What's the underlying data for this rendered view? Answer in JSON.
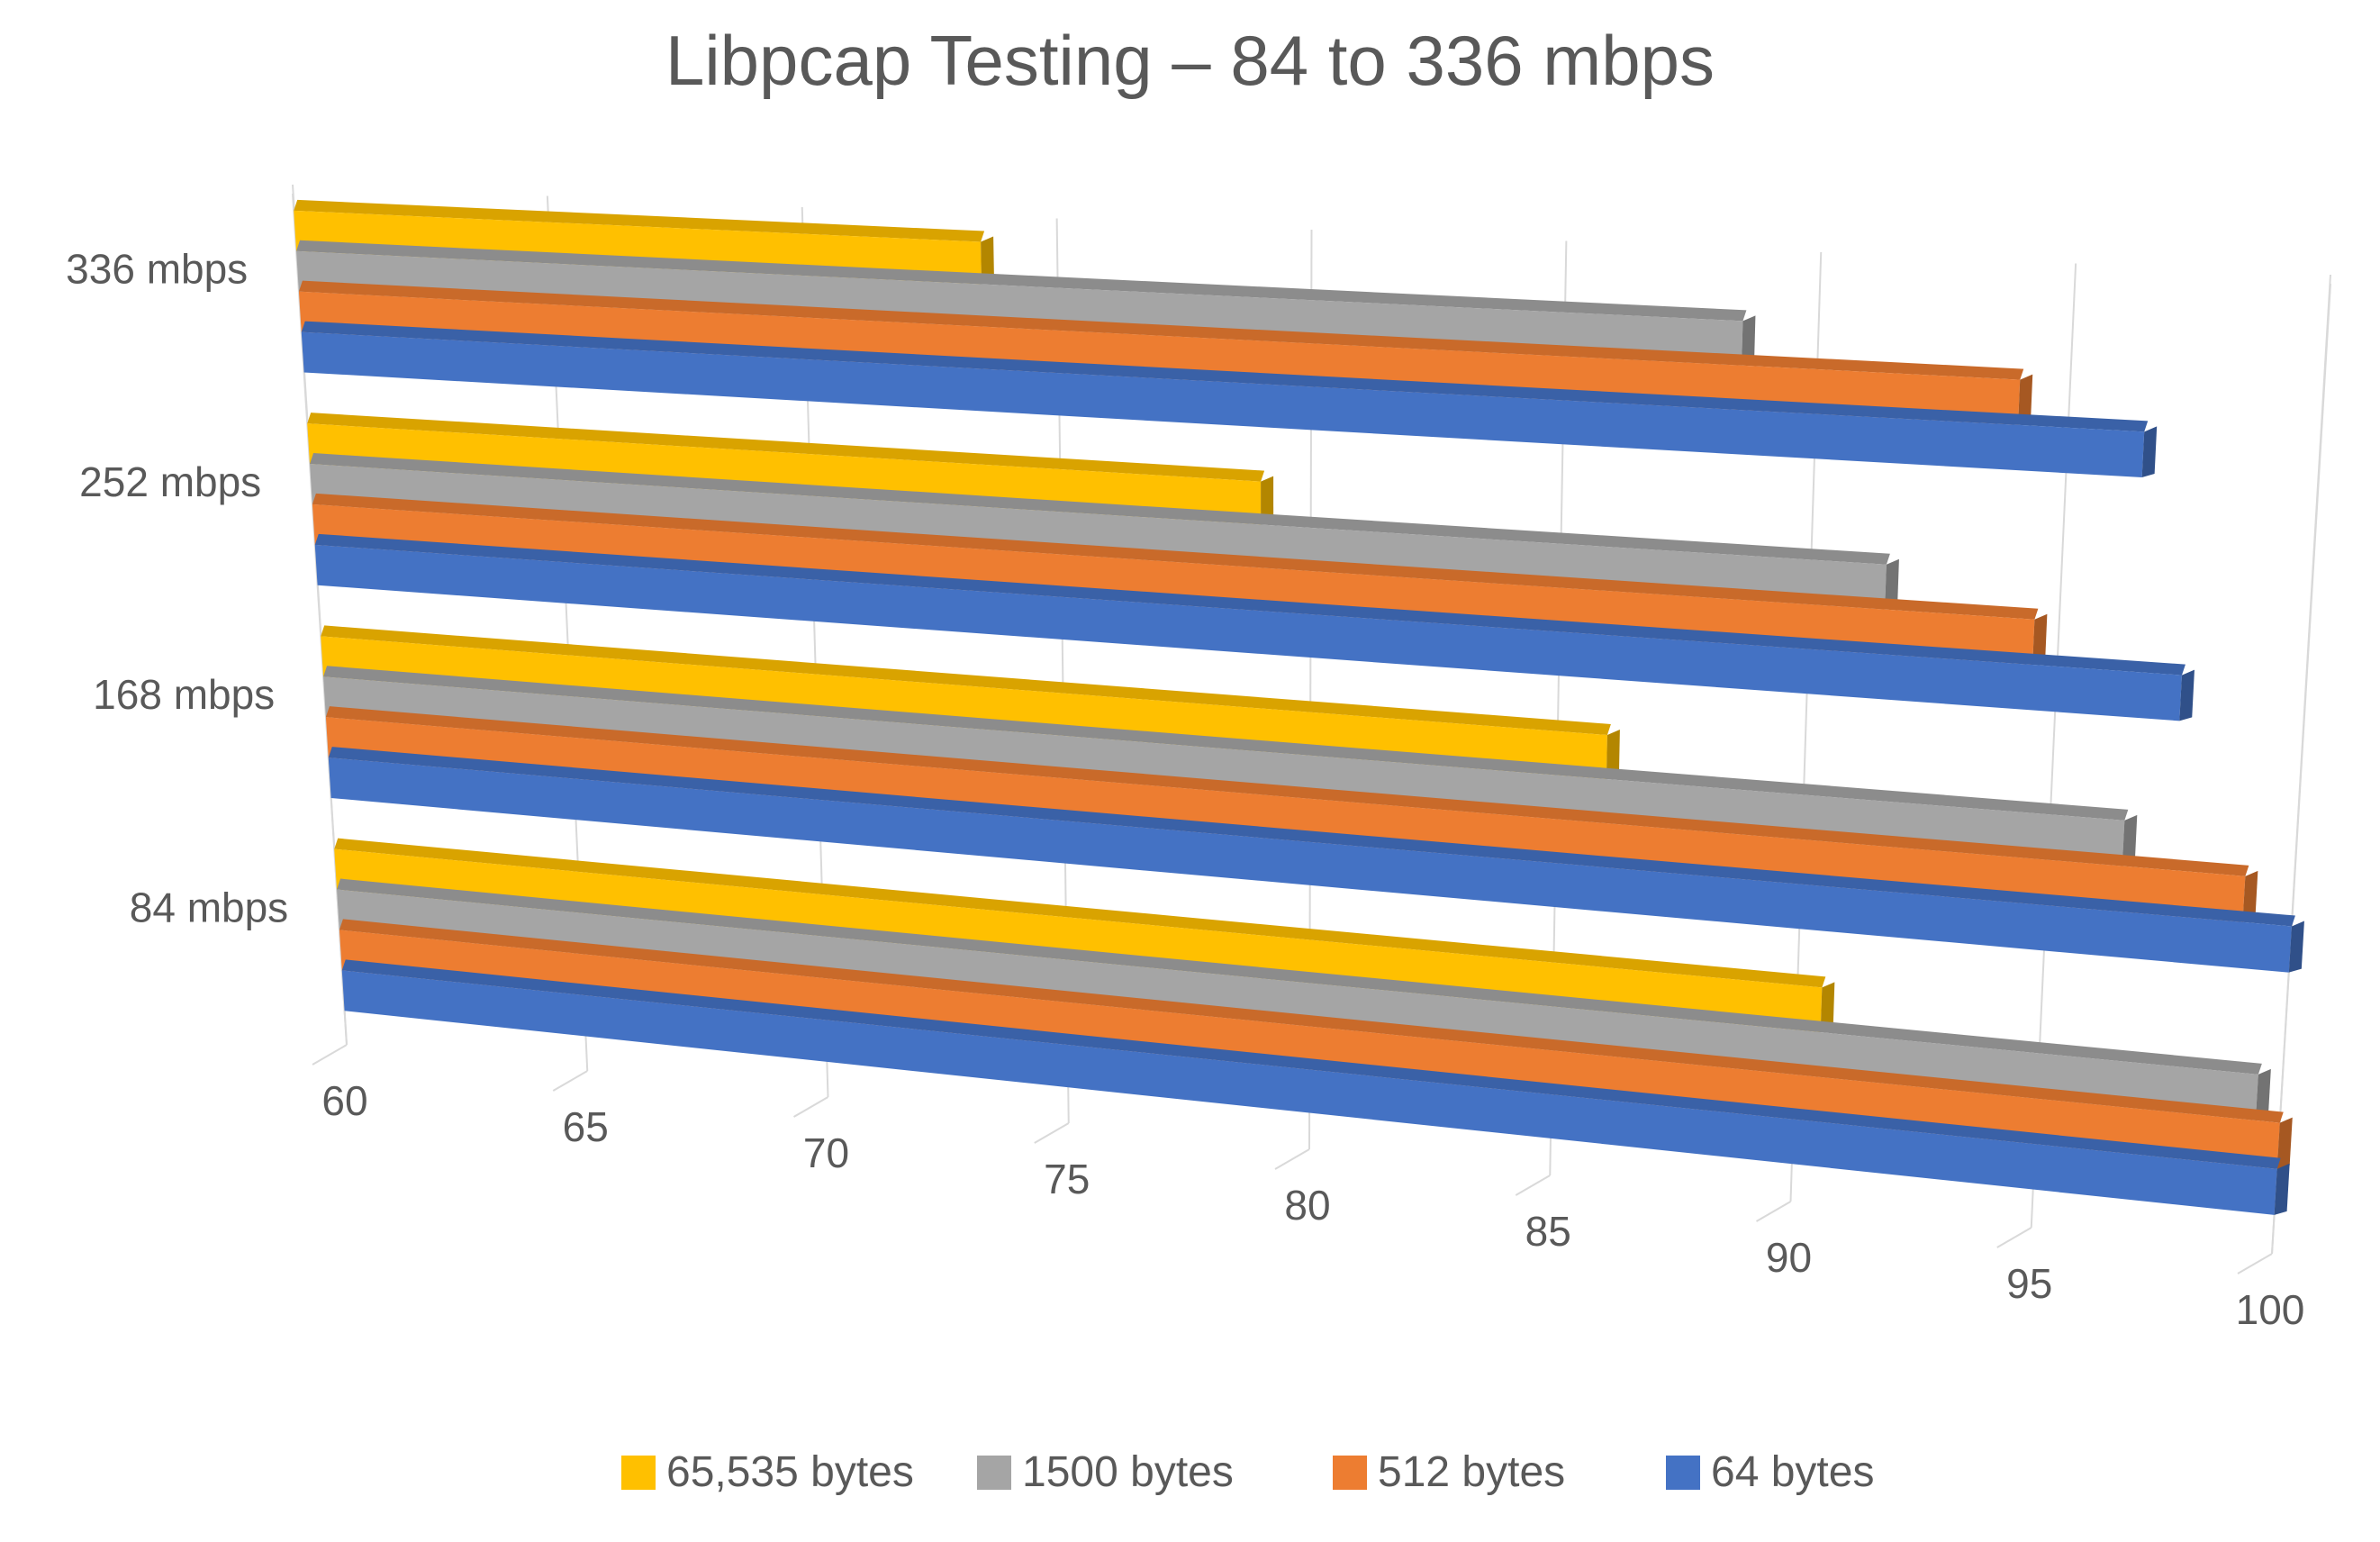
{
  "chart_data": {
    "type": "bar",
    "orientation": "horizontal-3d",
    "title": "Libpcap Testing – 84 to 336 mbps",
    "xlabel": "",
    "ylabel": "",
    "xlim": [
      60,
      100
    ],
    "xticks": [
      60,
      65,
      70,
      75,
      80,
      85,
      90,
      95,
      100
    ],
    "categories": [
      "336 mbps",
      "252 mbps",
      "168 mbps",
      "84 mbps"
    ],
    "series": [
      {
        "name": "65,535 bytes",
        "color": "#FFC000",
        "values": [
          73.5,
          79.0,
          86.0,
          90.5
        ]
      },
      {
        "name": "1500 bytes",
        "color": "#A5A5A5",
        "values": [
          88.5,
          91.5,
          96.5,
          99.5
        ]
      },
      {
        "name": "512 bytes",
        "color": "#ED7D31",
        "values": [
          94.0,
          94.5,
          99.0,
          100.0
        ]
      },
      {
        "name": "64 bytes",
        "color": "#4472C4",
        "values": [
          96.5,
          97.5,
          100.0,
          100.0
        ]
      }
    ],
    "legend_position": "bottom",
    "grid": true
  }
}
